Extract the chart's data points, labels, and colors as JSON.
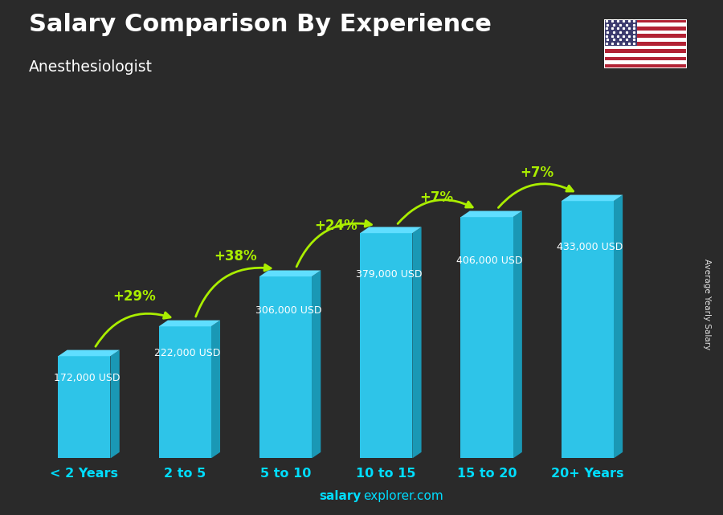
{
  "title": "Salary Comparison By Experience",
  "subtitle": "Anesthesiologist",
  "categories": [
    "< 2 Years",
    "2 to 5",
    "5 to 10",
    "10 to 15",
    "15 to 20",
    "20+ Years"
  ],
  "values": [
    172000,
    222000,
    306000,
    379000,
    406000,
    433000
  ],
  "labels": [
    "172,000 USD",
    "222,000 USD",
    "306,000 USD",
    "379,000 USD",
    "406,000 USD",
    "433,000 USD"
  ],
  "pct_labels": [
    "+29%",
    "+38%",
    "+24%",
    "+7%",
    "+7%"
  ],
  "front_color": "#2EC4E8",
  "top_color": "#60DEFF",
  "side_color": "#1A98B5",
  "bg_color": "#2a2a2a",
  "title_color": "#ffffff",
  "subtitle_color": "#ffffff",
  "label_color": "#ffffff",
  "pct_color": "#AAEE00",
  "xtick_color": "#00DDFF",
  "footer_bold": "salary",
  "footer_normal": "explorer.com",
  "ylabel_text": "Average Yearly Salary",
  "ylim_max": 520000
}
